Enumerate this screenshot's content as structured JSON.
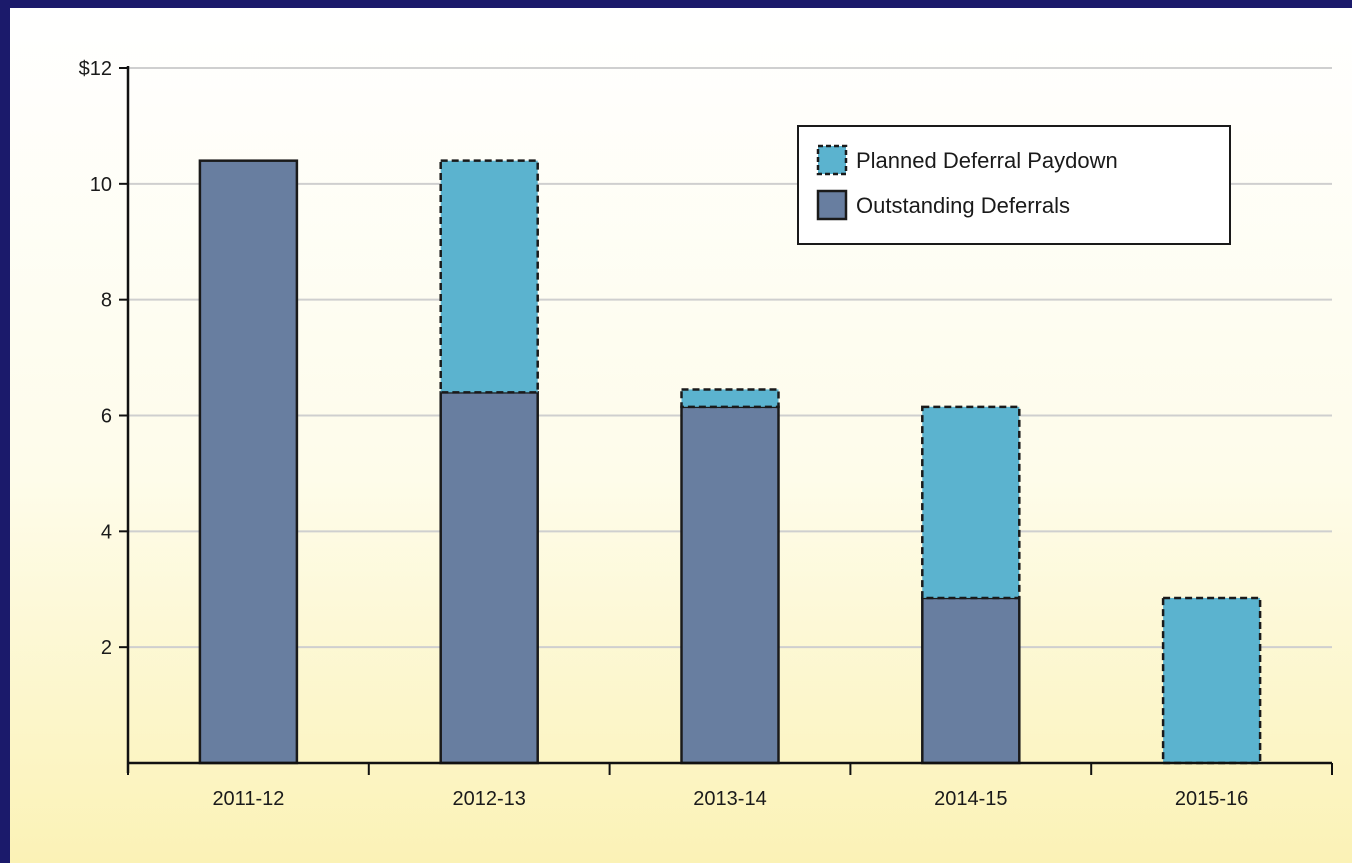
{
  "chart_data": {
    "type": "bar",
    "stacked": true,
    "categories": [
      "2011-12",
      "2012-13",
      "2013-14",
      "2014-15",
      "2015-16"
    ],
    "series": [
      {
        "name": "Outstanding Deferrals",
        "values": [
          10.4,
          6.4,
          6.15,
          2.85,
          0
        ],
        "color": "#687ea0",
        "border": "solid"
      },
      {
        "name": "Planned Deferral Paydown",
        "values": [
          0,
          4.0,
          0.3,
          3.3,
          2.85
        ],
        "color": "#5bb3cf",
        "border": "dashed"
      }
    ],
    "title": "",
    "xlabel": "",
    "ylabel": "",
    "ylim": [
      0,
      12
    ],
    "yticks": [
      2,
      4,
      6,
      8,
      10,
      12
    ],
    "ytick_labels": [
      "2",
      "4",
      "6",
      "8",
      "10",
      "$12"
    ],
    "grid": true,
    "legend_position": "top-right"
  }
}
